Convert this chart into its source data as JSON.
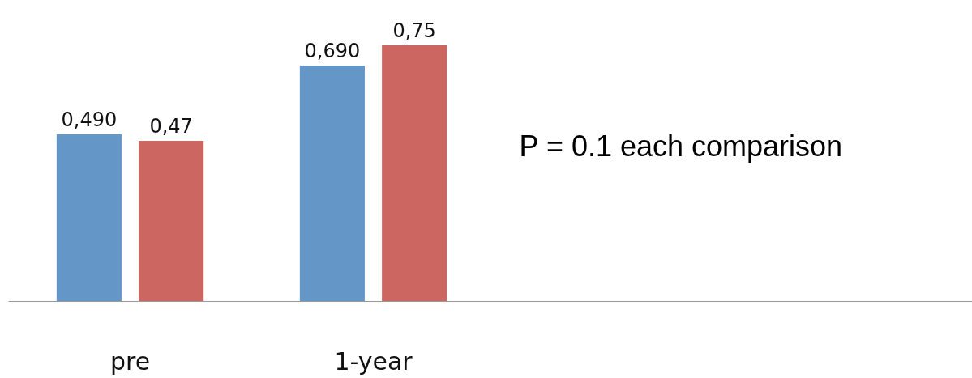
{
  "chart_data": {
    "type": "bar",
    "categories": [
      "pre",
      "1-year"
    ],
    "series": [
      {
        "color": "#6497c8",
        "values": [
          0.49,
          0.69
        ],
        "value_labels": [
          "0,490",
          "0,690"
        ]
      },
      {
        "color": "#cc6660",
        "values": [
          0.47,
          0.75
        ],
        "value_labels": [
          "0,47",
          "0,75"
        ]
      }
    ],
    "grid": false,
    "annotations": [
      "P = 0.1 each comparison"
    ]
  }
}
